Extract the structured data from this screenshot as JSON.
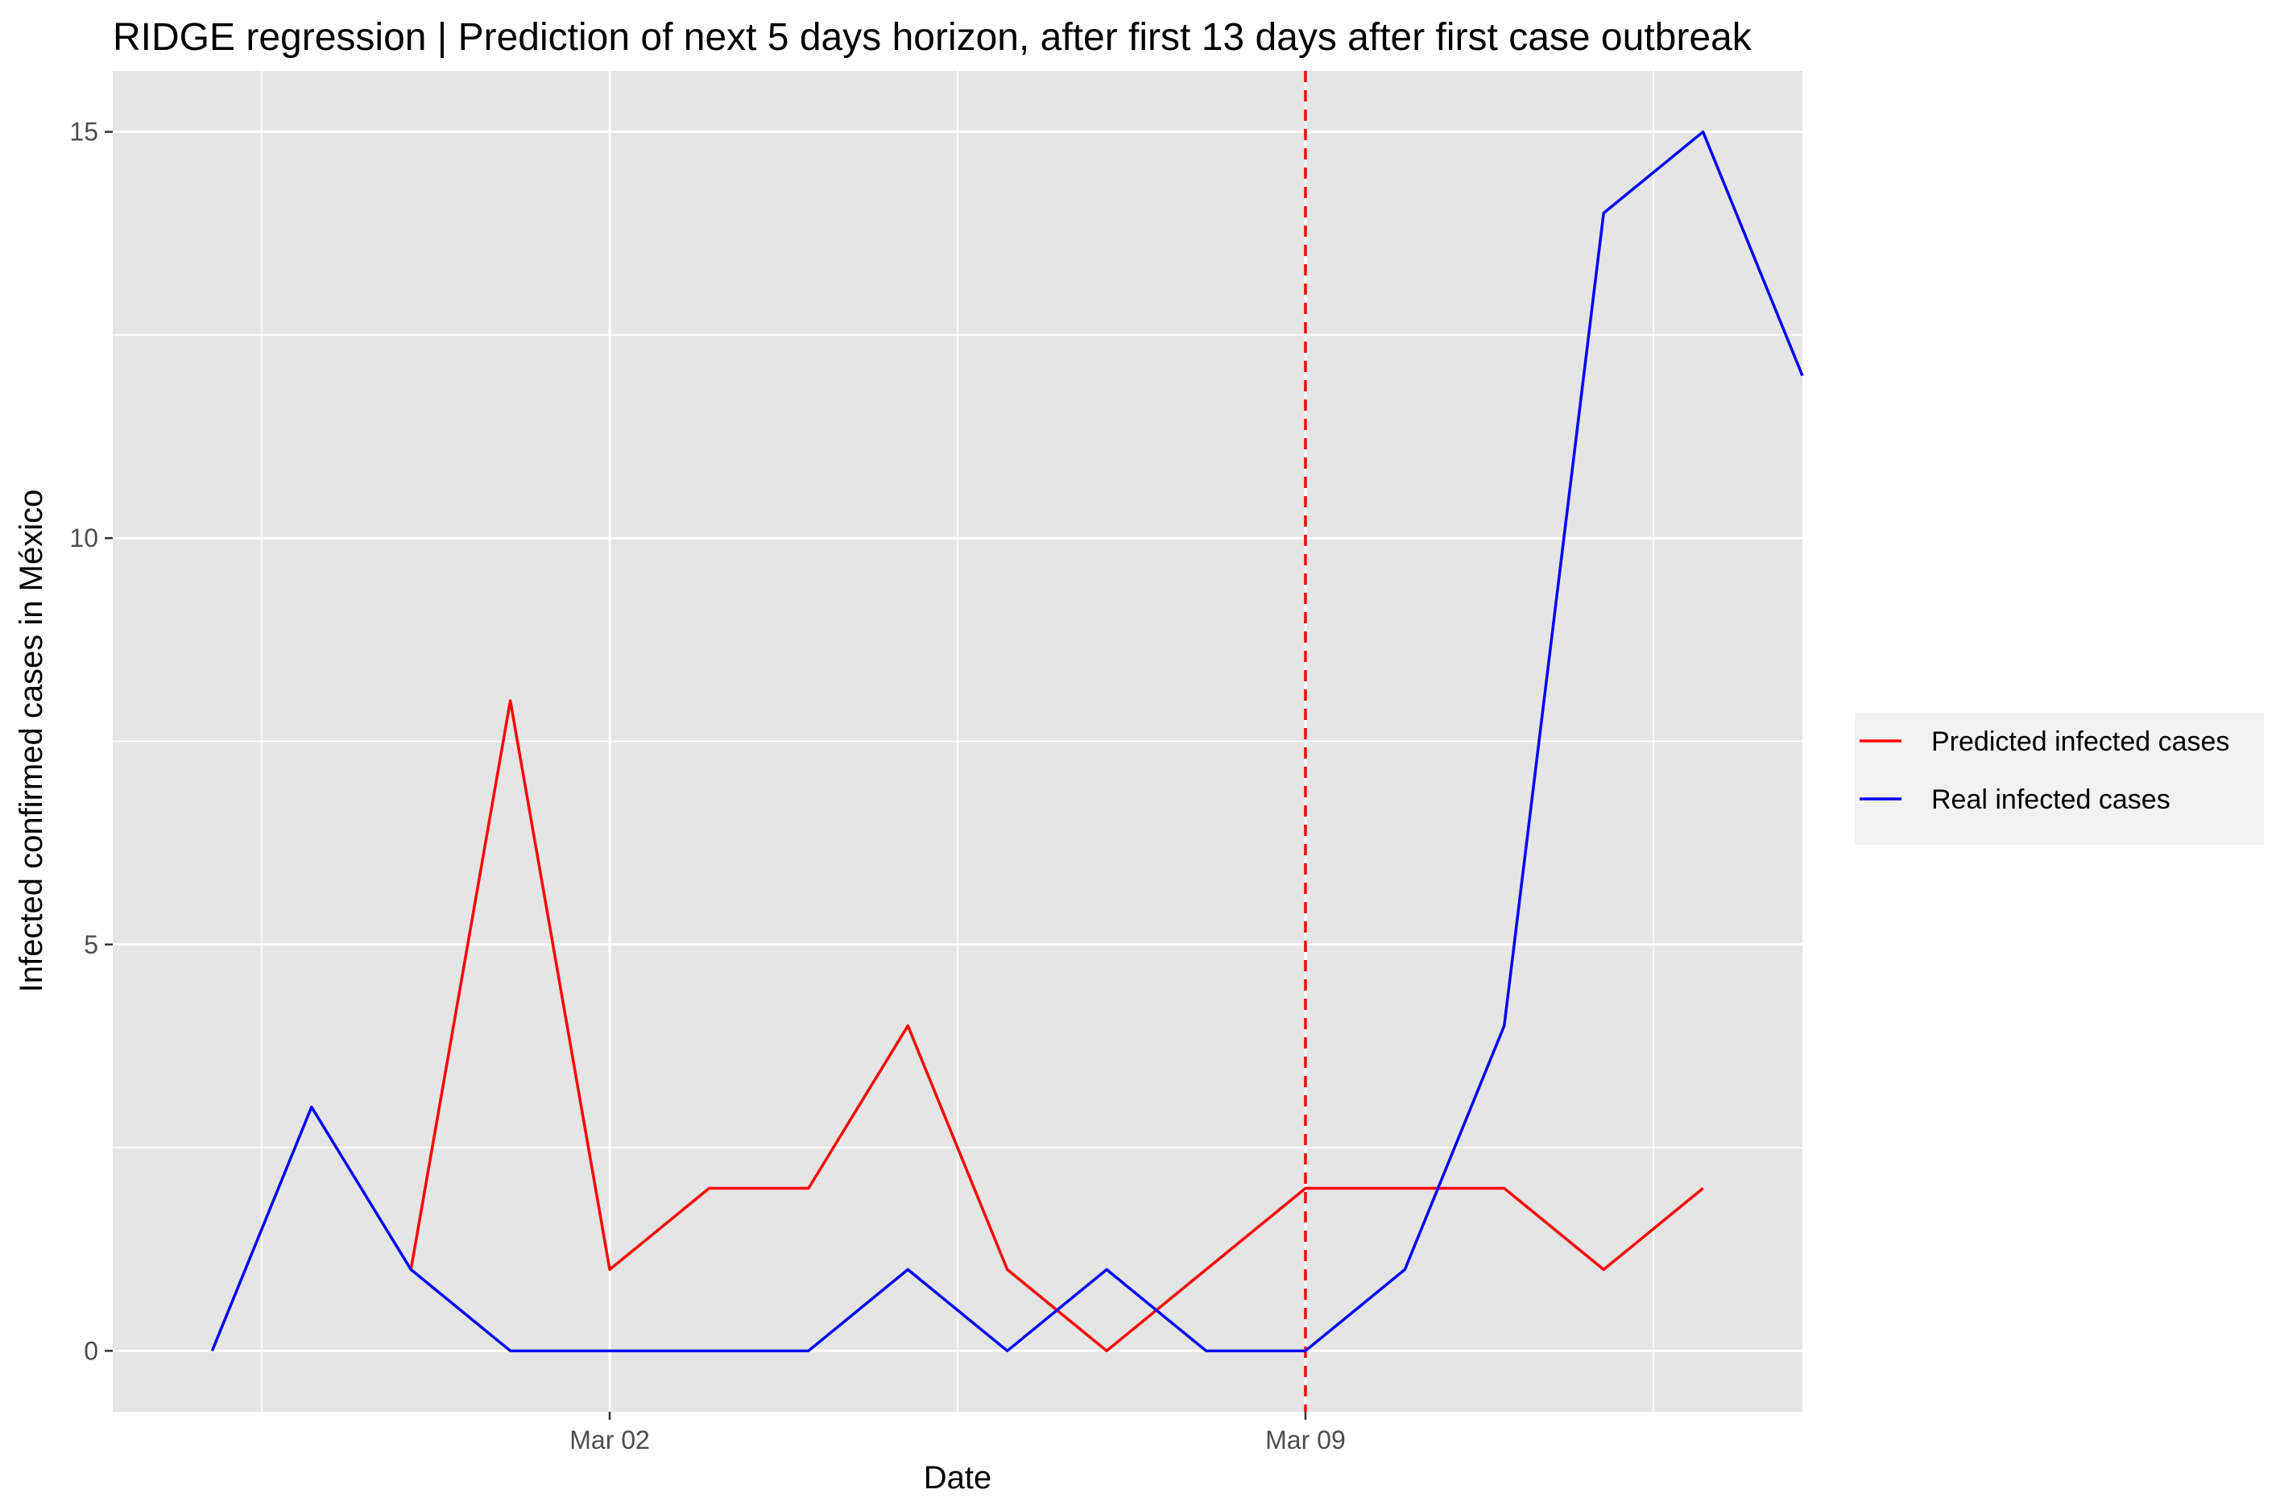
{
  "chart_data": {
    "type": "line",
    "title": "RIDGE regression | Prediction of next 5 days horizon, after first 13 days after first case outbreak",
    "xlabel": "Date",
    "ylabel": "Infected confirmed cases in México",
    "x_tick_labels": [
      {
        "date": "2020-03-02",
        "label": "Mar 02"
      },
      {
        "date": "2020-03-09",
        "label": "Mar 09"
      }
    ],
    "y_ticks": [
      0,
      5,
      10,
      15
    ],
    "ylim": [
      -0.75,
      15.75
    ],
    "xlim": [
      "2020-02-26",
      "2020-03-14"
    ],
    "grid": true,
    "legend_position": "right",
    "vline": {
      "date": "2020-03-09",
      "color": "#ff0000",
      "style": "dashed"
    },
    "series": [
      {
        "name": "Predicted infected cases",
        "color": "#ff0000",
        "x": [
          "2020-02-29",
          "2020-03-01",
          "2020-03-02",
          "2020-03-03",
          "2020-03-04",
          "2020-03-05",
          "2020-03-06",
          "2020-03-07",
          "2020-03-08",
          "2020-03-09",
          "2020-03-10",
          "2020-03-11",
          "2020-03-12",
          "2020-03-13"
        ],
        "values": [
          1,
          8,
          1,
          2,
          2,
          4,
          1,
          0,
          1,
          2,
          2,
          2,
          1,
          2
        ]
      },
      {
        "name": "Real infected cases",
        "color": "#0000ff",
        "x": [
          "2020-02-27",
          "2020-02-28",
          "2020-02-29",
          "2020-03-01",
          "2020-03-02",
          "2020-03-03",
          "2020-03-04",
          "2020-03-05",
          "2020-03-06",
          "2020-03-07",
          "2020-03-08",
          "2020-03-09",
          "2020-03-10",
          "2020-03-11",
          "2020-03-12",
          "2020-03-13",
          "2020-03-14"
        ],
        "values": [
          0,
          3,
          1,
          0,
          0,
          0,
          0,
          1,
          0,
          1,
          0,
          0,
          1,
          4,
          14,
          15,
          12
        ]
      }
    ]
  }
}
